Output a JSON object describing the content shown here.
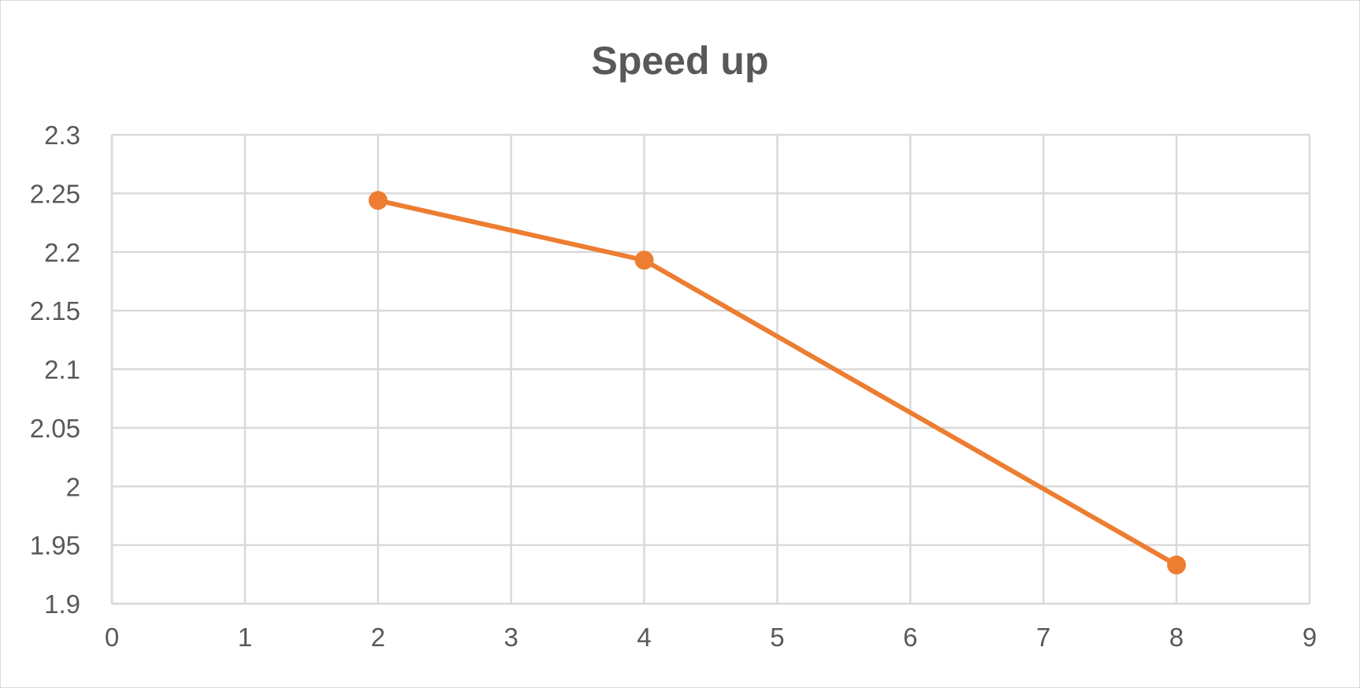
{
  "chart_data": {
    "type": "scatter",
    "title": "Speed up",
    "xlabel": "",
    "ylabel": "",
    "xlim": [
      0,
      9
    ],
    "ylim": [
      1.9,
      2.3
    ],
    "x_ticks": [
      "0",
      "1",
      "2",
      "3",
      "4",
      "5",
      "6",
      "7",
      "8",
      "9"
    ],
    "y_ticks": [
      "1.9",
      "1.95",
      "2",
      "2.05",
      "2.1",
      "2.15",
      "2.2",
      "2.25",
      "2.3"
    ],
    "grid": true,
    "legend": "none",
    "series": [
      {
        "color": "#ED7D31",
        "marker": "circle",
        "line": "straight",
        "points": [
          {
            "x": 2,
            "y": 2.244
          },
          {
            "x": 4,
            "y": 2.193
          },
          {
            "x": 8,
            "y": 1.933
          }
        ]
      }
    ]
  }
}
